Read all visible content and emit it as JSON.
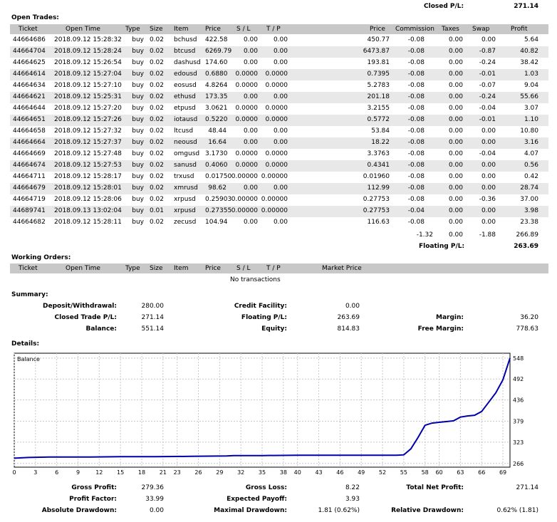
{
  "closed_pl": {
    "label": "Closed P/L:",
    "value": "271.14"
  },
  "open_trades": {
    "title": "Open Trades:",
    "columns": {
      "ticket": "Ticket",
      "open_time": "Open Time",
      "type": "Type",
      "size": "Size",
      "item": "Item",
      "price": "Price",
      "sl": "S / L",
      "tp": "T / P",
      "close_price": "Price",
      "commission": "Commission",
      "taxes": "Taxes",
      "swap": "Swap",
      "profit": "Profit"
    },
    "rows": [
      [
        "44664686",
        "2018.09.12 15:28:32",
        "buy",
        "0.02",
        "bchusd",
        "422.58",
        "0.00",
        "0.00",
        "450.77",
        "-0.08",
        "0.00",
        "0.00",
        "5.64"
      ],
      [
        "44664704",
        "2018.09.12 15:28:24",
        "buy",
        "0.02",
        "btcusd",
        "6269.79",
        "0.00",
        "0.00",
        "6473.87",
        "-0.08",
        "0.00",
        "-0.87",
        "40.82"
      ],
      [
        "44664625",
        "2018.09.12 15:26:54",
        "buy",
        "0.02",
        "dashusd",
        "174.60",
        "0.00",
        "0.00",
        "193.81",
        "-0.08",
        "0.00",
        "-0.24",
        "38.42"
      ],
      [
        "44664614",
        "2018.09.12 15:27:04",
        "buy",
        "0.02",
        "edousd",
        "0.6880",
        "0.0000",
        "0.0000",
        "0.7395",
        "-0.08",
        "0.00",
        "-0.01",
        "1.03"
      ],
      [
        "44664634",
        "2018.09.12 15:27:10",
        "buy",
        "0.02",
        "eosusd",
        "4.8264",
        "0.0000",
        "0.0000",
        "5.2783",
        "-0.08",
        "0.00",
        "-0.07",
        "9.04"
      ],
      [
        "44664621",
        "2018.09.12 15:25:31",
        "buy",
        "0.02",
        "ethusd",
        "173.35",
        "0.00",
        "0.00",
        "201.18",
        "-0.08",
        "0.00",
        "-0.24",
        "55.66"
      ],
      [
        "44664644",
        "2018.09.12 15:27:20",
        "buy",
        "0.02",
        "etpusd",
        "3.0621",
        "0.0000",
        "0.0000",
        "3.2155",
        "-0.08",
        "0.00",
        "-0.04",
        "3.07"
      ],
      [
        "44664651",
        "2018.09.12 15:27:26",
        "buy",
        "0.02",
        "iotausd",
        "0.5220",
        "0.0000",
        "0.0000",
        "0.5772",
        "-0.08",
        "0.00",
        "-0.01",
        "1.10"
      ],
      [
        "44664658",
        "2018.09.12 15:27:32",
        "buy",
        "0.02",
        "ltcusd",
        "48.44",
        "0.00",
        "0.00",
        "53.84",
        "-0.08",
        "0.00",
        "0.00",
        "10.80"
      ],
      [
        "44664664",
        "2018.09.12 15:27:37",
        "buy",
        "0.02",
        "neousd",
        "16.64",
        "0.00",
        "0.00",
        "18.22",
        "-0.08",
        "0.00",
        "0.00",
        "3.16"
      ],
      [
        "44664669",
        "2018.09.12 15:27:48",
        "buy",
        "0.02",
        "omgusd",
        "3.1730",
        "0.0000",
        "0.0000",
        "3.3763",
        "-0.08",
        "0.00",
        "-0.04",
        "4.07"
      ],
      [
        "44664674",
        "2018.09.12 15:27:53",
        "buy",
        "0.02",
        "sanusd",
        "0.4060",
        "0.0000",
        "0.0000",
        "0.4341",
        "-0.08",
        "0.00",
        "0.00",
        "0.56"
      ],
      [
        "44664711",
        "2018.09.12 15:28:17",
        "buy",
        "0.02",
        "trxusd",
        "0.01750",
        "0.00000",
        "0.00000",
        "0.01960",
        "-0.08",
        "0.00",
        "0.00",
        "0.42"
      ],
      [
        "44664679",
        "2018.09.12 15:28:01",
        "buy",
        "0.02",
        "xmrusd",
        "98.62",
        "0.00",
        "0.00",
        "112.99",
        "-0.08",
        "0.00",
        "0.00",
        "28.74"
      ],
      [
        "44664719",
        "2018.09.12 15:28:06",
        "buy",
        "0.02",
        "xrpusd",
        "0.25903",
        "0.00000",
        "0.00000",
        "0.27753",
        "-0.08",
        "0.00",
        "-0.36",
        "37.00"
      ],
      [
        "44689741",
        "2018.09.13 13:02:04",
        "buy",
        "0.01",
        "xrpusd",
        "0.27355",
        "0.00000",
        "0.00000",
        "0.27753",
        "-0.04",
        "0.00",
        "0.00",
        "3.98"
      ],
      [
        "44664682",
        "2018.09.12 15:28:11",
        "buy",
        "0.02",
        "zecusd",
        "104.94",
        "0.00",
        "0.00",
        "116.63",
        "-0.08",
        "0.00",
        "0.00",
        "23.38"
      ]
    ],
    "totals": {
      "commission": "-1.32",
      "taxes": "0.00",
      "swap": "-1.88",
      "profit": "266.89"
    },
    "floating_label": "Floating P/L:",
    "floating_value": "263.69"
  },
  "working_orders": {
    "title": "Working Orders:",
    "columns": {
      "ticket": "Ticket",
      "open_time": "Open Time",
      "type": "Type",
      "size": "Size",
      "item": "Item",
      "price": "Price",
      "sl": "S / L",
      "tp": "T / P",
      "market_price": "Market Price"
    },
    "empty": "No transactions"
  },
  "summary": {
    "title": "Summary:",
    "deposit_label": "Deposit/Withdrawal:",
    "deposit_value": "280.00",
    "closed_label": "Closed Trade P/L:",
    "closed_value": "271.14",
    "balance_label": "Balance:",
    "balance_value": "551.14",
    "credit_label": "Credit Facility:",
    "credit_value": "0.00",
    "floating_label": "Floating P/L:",
    "floating_value": "263.69",
    "equity_label": "Equity:",
    "equity_value": "814.83",
    "margin_label": "Margin:",
    "margin_value": "36.20",
    "free_margin_label": "Free Margin:",
    "free_margin_value": "778.63"
  },
  "details": {
    "title": "Details:"
  },
  "chart_data": {
    "type": "line",
    "series_label": "Balance",
    "x_ticks": [
      0,
      3,
      6,
      9,
      12,
      15,
      18,
      21,
      23,
      26,
      29,
      32,
      35,
      38,
      40,
      43,
      46,
      49,
      52,
      55,
      58,
      60,
      63,
      66,
      69
    ],
    "y_ticks": [
      266,
      323,
      379,
      436,
      492,
      548
    ],
    "xlim": [
      0,
      70
    ],
    "ylim": [
      256,
      561
    ],
    "x": [
      0,
      2,
      5,
      10,
      15,
      20,
      25,
      30,
      31,
      35,
      40,
      45,
      50,
      52,
      54,
      55,
      56,
      57,
      58,
      59,
      60,
      61,
      62,
      63,
      64,
      65,
      66,
      67,
      68,
      69,
      70
    ],
    "y": [
      280,
      282,
      283,
      283,
      284,
      284,
      285,
      286,
      287,
      287,
      288,
      288,
      288,
      288,
      288,
      289,
      305,
      335,
      368,
      374,
      376,
      378,
      380,
      390,
      393,
      395,
      405,
      430,
      455,
      490,
      548
    ],
    "color": "#0000aa"
  },
  "stats": {
    "gross_profit_label": "Gross Profit:",
    "gross_profit_value": "279.36",
    "gross_loss_label": "Gross Loss:",
    "gross_loss_value": "8.22",
    "total_net_label": "Total Net Profit:",
    "total_net_value": "271.14",
    "profit_factor_label": "Profit Factor:",
    "profit_factor_value": "33.99",
    "expected_payoff_label": "Expected Payoff:",
    "expected_payoff_value": "3.93",
    "abs_dd_label": "Absolute Drawdown:",
    "abs_dd_value": "0.00",
    "max_dd_label": "Maximal Drawdown:",
    "max_dd_value": "1.81 (0.62%)",
    "rel_dd_label": "Relative Drawdown:",
    "rel_dd_value": "0.62% (1.81)"
  }
}
